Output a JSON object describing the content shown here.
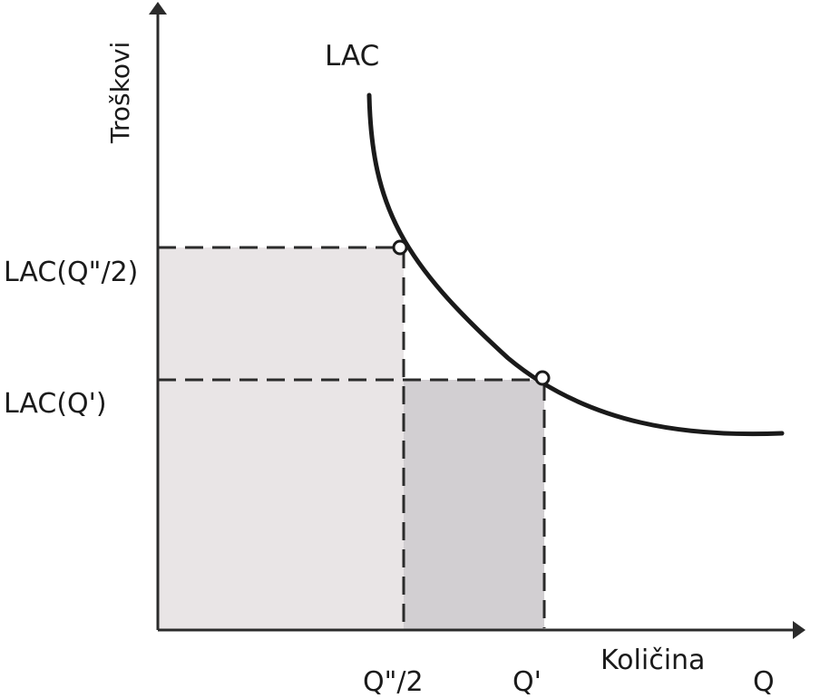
{
  "diagram": {
    "curve_label": "LAC",
    "y_axis_title": "Troškovi",
    "x_axis_title": "Količina",
    "y_ticks": {
      "high": "LAC(Q\"/2)",
      "low": "LAC(Q')"
    },
    "x_ticks": {
      "half": "Q\"/2",
      "prime": "Q'",
      "end": "Q"
    },
    "colors": {
      "axis": "#2b2b2b",
      "curve": "#1a1a1a",
      "dash": "#2b2b2b",
      "region_light": "#e9e5e6",
      "region_dark": "#d2cfd2",
      "point_fill": "#ffffff"
    }
  }
}
